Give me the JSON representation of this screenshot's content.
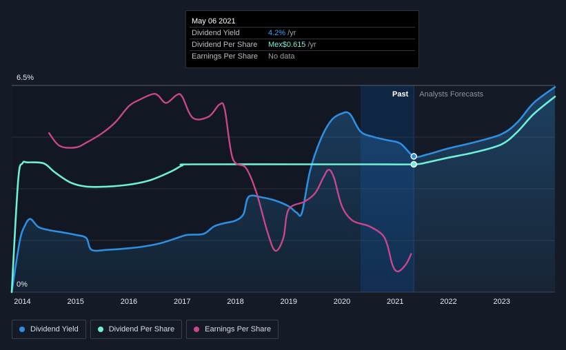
{
  "tooltip": {
    "date": "May 06 2021",
    "rows": [
      {
        "label": "Dividend Yield",
        "value": "4.2%",
        "unit": " /yr"
      },
      {
        "label": "Dividend Per Share",
        "value": "Mex$0.615",
        "unit": " /yr"
      },
      {
        "label": "Earnings Per Share",
        "value": "No data",
        "unit": ""
      }
    ]
  },
  "legend": [
    {
      "label": "Dividend Yield",
      "color": "#2e8fe0"
    },
    {
      "label": "Dividend Per Share",
      "color": "#6ff0d6"
    },
    {
      "label": "Earnings Per Share",
      "color": "#c8478a"
    }
  ],
  "regions": {
    "past": "Past",
    "forecast": "Analysts Forecasts"
  },
  "chart_data": {
    "type": "line",
    "xlim": [
      2013.8,
      2024.0
    ],
    "ylim": [
      0,
      6.5
    ],
    "y_tick_labels": [
      "6.5%",
      "0%"
    ],
    "x_ticks": [
      2014,
      2015,
      2016,
      2017,
      2018,
      2019,
      2020,
      2021,
      2022,
      2023
    ],
    "past_end": 2021.35,
    "highlight_start": 2020.35,
    "grid": true,
    "series": [
      {
        "name": "Dividend Yield",
        "color": "#2e8fe0",
        "filled": true,
        "points": [
          [
            2013.8,
            0
          ],
          [
            2013.95,
            1.6
          ],
          [
            2014.05,
            2.1
          ],
          [
            2014.15,
            2.3
          ],
          [
            2014.3,
            2.05
          ],
          [
            2014.5,
            1.95
          ],
          [
            2014.75,
            1.88
          ],
          [
            2015.0,
            1.8
          ],
          [
            2015.2,
            1.7
          ],
          [
            2015.3,
            1.33
          ],
          [
            2015.6,
            1.33
          ],
          [
            2016.0,
            1.38
          ],
          [
            2016.3,
            1.44
          ],
          [
            2016.6,
            1.54
          ],
          [
            2016.9,
            1.7
          ],
          [
            2017.1,
            1.8
          ],
          [
            2017.4,
            1.83
          ],
          [
            2017.6,
            2.07
          ],
          [
            2017.8,
            2.17
          ],
          [
            2018.0,
            2.25
          ],
          [
            2018.15,
            2.45
          ],
          [
            2018.25,
            3.0
          ],
          [
            2018.5,
            2.98
          ],
          [
            2018.75,
            2.88
          ],
          [
            2019.0,
            2.7
          ],
          [
            2019.15,
            2.5
          ],
          [
            2019.25,
            2.5
          ],
          [
            2019.4,
            3.8
          ],
          [
            2019.6,
            4.8
          ],
          [
            2019.8,
            5.4
          ],
          [
            2020.0,
            5.62
          ],
          [
            2020.15,
            5.6
          ],
          [
            2020.35,
            5.05
          ],
          [
            2020.6,
            4.88
          ],
          [
            2020.85,
            4.78
          ],
          [
            2021.1,
            4.67
          ],
          [
            2021.35,
            4.27
          ],
          [
            2021.6,
            4.33
          ],
          [
            2022.0,
            4.52
          ],
          [
            2022.5,
            4.72
          ],
          [
            2023.0,
            4.97
          ],
          [
            2023.3,
            5.35
          ],
          [
            2023.6,
            5.95
          ],
          [
            2024.0,
            6.45
          ]
        ]
      },
      {
        "name": "Dividend Per Share",
        "color": "#6ff0d6",
        "filled": false,
        "points": [
          [
            2013.8,
            0
          ],
          [
            2013.92,
            3.5
          ],
          [
            2014.0,
            4.05
          ],
          [
            2014.1,
            4.08
          ],
          [
            2014.4,
            4.05
          ],
          [
            2014.6,
            3.78
          ],
          [
            2014.9,
            3.45
          ],
          [
            2015.2,
            3.32
          ],
          [
            2015.6,
            3.32
          ],
          [
            2016.0,
            3.38
          ],
          [
            2016.4,
            3.52
          ],
          [
            2016.8,
            3.8
          ],
          [
            2017.0,
            3.98
          ],
          [
            2017.2,
            4.02
          ],
          [
            2019.5,
            4.02
          ],
          [
            2020.5,
            4.02
          ],
          [
            2021.35,
            4.02
          ],
          [
            2021.6,
            4.08
          ],
          [
            2022.0,
            4.23
          ],
          [
            2022.5,
            4.4
          ],
          [
            2023.0,
            4.65
          ],
          [
            2023.3,
            5.05
          ],
          [
            2023.6,
            5.6
          ],
          [
            2024.0,
            6.15
          ]
        ]
      },
      {
        "name": "Earnings Per Share",
        "color": "#c8478a",
        "filled": false,
        "points": [
          [
            2014.5,
            5.0
          ],
          [
            2014.7,
            4.6
          ],
          [
            2015.0,
            4.55
          ],
          [
            2015.2,
            4.7
          ],
          [
            2015.5,
            5.0
          ],
          [
            2015.75,
            5.35
          ],
          [
            2016.0,
            5.85
          ],
          [
            2016.2,
            6.05
          ],
          [
            2016.45,
            6.23
          ],
          [
            2016.55,
            6.18
          ],
          [
            2016.7,
            5.95
          ],
          [
            2016.9,
            6.2
          ],
          [
            2017.0,
            6.15
          ],
          [
            2017.2,
            5.48
          ],
          [
            2017.5,
            5.52
          ],
          [
            2017.7,
            5.9
          ],
          [
            2017.8,
            5.75
          ],
          [
            2017.95,
            4.2
          ],
          [
            2018.2,
            3.9
          ],
          [
            2018.4,
            3.1
          ],
          [
            2018.6,
            1.9
          ],
          [
            2018.75,
            1.3
          ],
          [
            2018.9,
            1.7
          ],
          [
            2019.0,
            2.6
          ],
          [
            2019.3,
            2.85
          ],
          [
            2019.5,
            3.12
          ],
          [
            2019.65,
            3.6
          ],
          [
            2019.75,
            3.85
          ],
          [
            2019.85,
            3.6
          ],
          [
            2020.0,
            2.7
          ],
          [
            2020.2,
            2.25
          ],
          [
            2020.5,
            2.08
          ],
          [
            2020.75,
            1.82
          ],
          [
            2020.85,
            1.5
          ],
          [
            2020.95,
            0.85
          ],
          [
            2021.05,
            0.65
          ],
          [
            2021.2,
            0.87
          ],
          [
            2021.3,
            1.2
          ]
        ]
      }
    ]
  }
}
